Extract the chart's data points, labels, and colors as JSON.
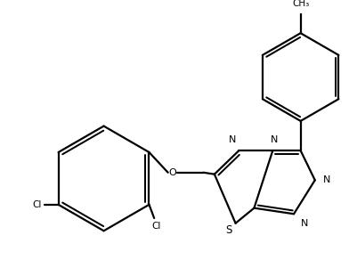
{
  "bg_color": "#ffffff",
  "line_color": "#000000",
  "line_width": 1.6,
  "figsize": [
    4.02,
    3.01
  ],
  "dpi": 100,
  "xlim": [
    0,
    402
  ],
  "ylim": [
    0,
    301
  ]
}
